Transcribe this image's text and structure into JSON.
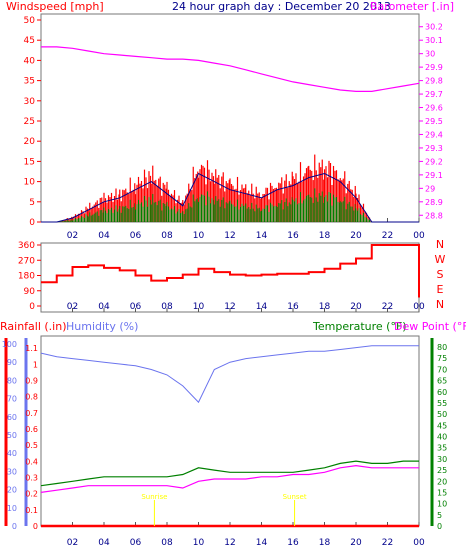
{
  "header": {
    "left_title": "Windspeed [mph]",
    "center_title": "24 hour graph day : December 20 2013",
    "right_title": "Barometer [.in]"
  },
  "colors": {
    "windspeed": "#ff0000",
    "gust": "#ff0000",
    "wind_avg_green": "#008000",
    "wind_avg_blue": "#00008b",
    "barometer": "#ff00ff",
    "direction": "#ff0000",
    "humidity": "#6b74ee",
    "temperature": "#008000",
    "dewpoint": "#ff00ff",
    "rainfall": "#ff0000",
    "sunmarker": "#ffff00"
  },
  "x_ticks": [
    "02",
    "04",
    "06",
    "08",
    "10",
    "12",
    "14",
    "16",
    "18",
    "20",
    "22",
    "00"
  ],
  "panel_wind": {
    "left_ticks": [
      "0",
      "5",
      "10",
      "15",
      "20",
      "25",
      "30",
      "35",
      "40",
      "45",
      "50"
    ],
    "right_ticks": [
      "28.8",
      "28.9",
      "29",
      "29.1",
      "29.2",
      "29.3",
      "29.4",
      "29.5",
      "29.6",
      "29.7",
      "29.8",
      "29.9",
      "30",
      "30.1",
      "30.2"
    ]
  },
  "panel_dir": {
    "left_ticks": [
      "0",
      "90",
      "180",
      "270",
      "360"
    ],
    "right_labels": [
      "N",
      "W",
      "S",
      "E",
      "N"
    ]
  },
  "panel_bottom": {
    "rain_label": "Rainfall (.in)",
    "humidity_label": "Humidity (%)",
    "temp_label": "Temperature (°F)",
    "dew_label": "Dew Point (°F)",
    "rain_ticks": [
      "0",
      "0.1",
      "0.2",
      "0.3",
      "0.4",
      "0.5",
      "0.6",
      "0.7",
      "0.8",
      "0.9",
      "1",
      "1.1"
    ],
    "hum_ticks": [
      "0",
      "10",
      "20",
      "30",
      "40",
      "50",
      "60",
      "70",
      "80",
      "90",
      "100"
    ],
    "temp_ticks": [
      "0",
      "5",
      "10",
      "15",
      "20",
      "25",
      "30",
      "35",
      "40",
      "45",
      "50",
      "55",
      "60",
      "65",
      "70",
      "75",
      "80"
    ],
    "sunrise_label": "Sunrise",
    "sunset_label": "Sunset"
  },
  "chart_data": [
    {
      "type": "line",
      "title": "24 hour graph day : December 20 2013",
      "series": [
        {
          "name": "Windspeed [mph]",
          "axis": "left",
          "ylim": [
            0,
            50
          ],
          "x": [
            0,
            1,
            2,
            3,
            4,
            5,
            6,
            7,
            8,
            9,
            10,
            11,
            12,
            13,
            14,
            15,
            16,
            17,
            18,
            19,
            20,
            21,
            22,
            23,
            24
          ],
          "y": [
            0,
            0,
            1,
            3,
            5,
            6,
            8,
            10,
            7,
            4,
            12,
            10,
            8,
            7,
            6,
            8,
            9,
            11,
            12,
            10,
            6,
            0,
            0,
            0,
            0
          ]
        },
        {
          "name": "Barometer [.in]",
          "axis": "right",
          "ylim": [
            28.75,
            30.25
          ],
          "x": [
            0,
            1,
            2,
            3,
            4,
            5,
            6,
            7,
            8,
            9,
            10,
            11,
            12,
            13,
            14,
            15,
            16,
            17,
            18,
            19,
            20,
            21,
            22,
            23,
            24
          ],
          "y": [
            30.05,
            30.05,
            30.04,
            30.02,
            30.0,
            29.99,
            29.98,
            29.97,
            29.96,
            29.96,
            29.95,
            29.93,
            29.91,
            29.88,
            29.85,
            29.82,
            29.79,
            29.77,
            29.75,
            29.73,
            29.72,
            29.72,
            29.74,
            29.76,
            29.78
          ]
        }
      ]
    },
    {
      "type": "line",
      "series": [
        {
          "name": "Wind Direction",
          "ylim": [
            0,
            360
          ],
          "x": [
            0,
            1,
            2,
            3,
            4,
            5,
            6,
            7,
            8,
            9,
            10,
            11,
            12,
            13,
            14,
            15,
            16,
            17,
            18,
            19,
            20,
            21,
            22,
            23,
            24
          ],
          "y": [
            140,
            180,
            230,
            240,
            225,
            210,
            180,
            150,
            165,
            185,
            220,
            200,
            185,
            180,
            185,
            190,
            190,
            200,
            220,
            250,
            280,
            360,
            360,
            360,
            50
          ]
        }
      ]
    },
    {
      "type": "line",
      "series": [
        {
          "name": "Humidity (%)",
          "ylim": [
            0,
            100
          ],
          "x": [
            0,
            1,
            2,
            3,
            4,
            5,
            6,
            7,
            8,
            9,
            10,
            11,
            12,
            13,
            14,
            15,
            16,
            17,
            18,
            19,
            20,
            21,
            22,
            23,
            24
          ],
          "y": [
            95,
            93,
            92,
            91,
            90,
            89,
            88,
            86,
            83,
            77,
            68,
            86,
            90,
            92,
            93,
            94,
            95,
            96,
            96,
            97,
            98,
            99,
            99,
            99,
            99
          ]
        },
        {
          "name": "Temperature (°F)",
          "ylim": [
            0,
            80
          ],
          "x": [
            0,
            1,
            2,
            3,
            4,
            5,
            6,
            7,
            8,
            9,
            10,
            11,
            12,
            13,
            14,
            15,
            16,
            17,
            18,
            19,
            20,
            21,
            22,
            23,
            24
          ],
          "y": [
            18,
            19,
            20,
            21,
            22,
            22,
            22,
            22,
            22,
            23,
            26,
            25,
            24,
            24,
            24,
            24,
            24,
            25,
            26,
            28,
            29,
            28,
            28,
            29,
            29
          ]
        },
        {
          "name": "Dew Point (°F)",
          "ylim": [
            0,
            80
          ],
          "x": [
            0,
            1,
            2,
            3,
            4,
            5,
            6,
            7,
            8,
            9,
            10,
            11,
            12,
            13,
            14,
            15,
            16,
            17,
            18,
            19,
            20,
            21,
            22,
            23,
            24
          ],
          "y": [
            15,
            16,
            17,
            18,
            18,
            18,
            18,
            18,
            18,
            17,
            20,
            21,
            21,
            21,
            22,
            22,
            23,
            23,
            24,
            26,
            27,
            26,
            26,
            26,
            26
          ]
        },
        {
          "name": "Rainfall (.in)",
          "ylim": [
            0,
            1.15
          ],
          "x": [
            0,
            24
          ],
          "y": [
            0,
            0
          ]
        }
      ]
    }
  ]
}
